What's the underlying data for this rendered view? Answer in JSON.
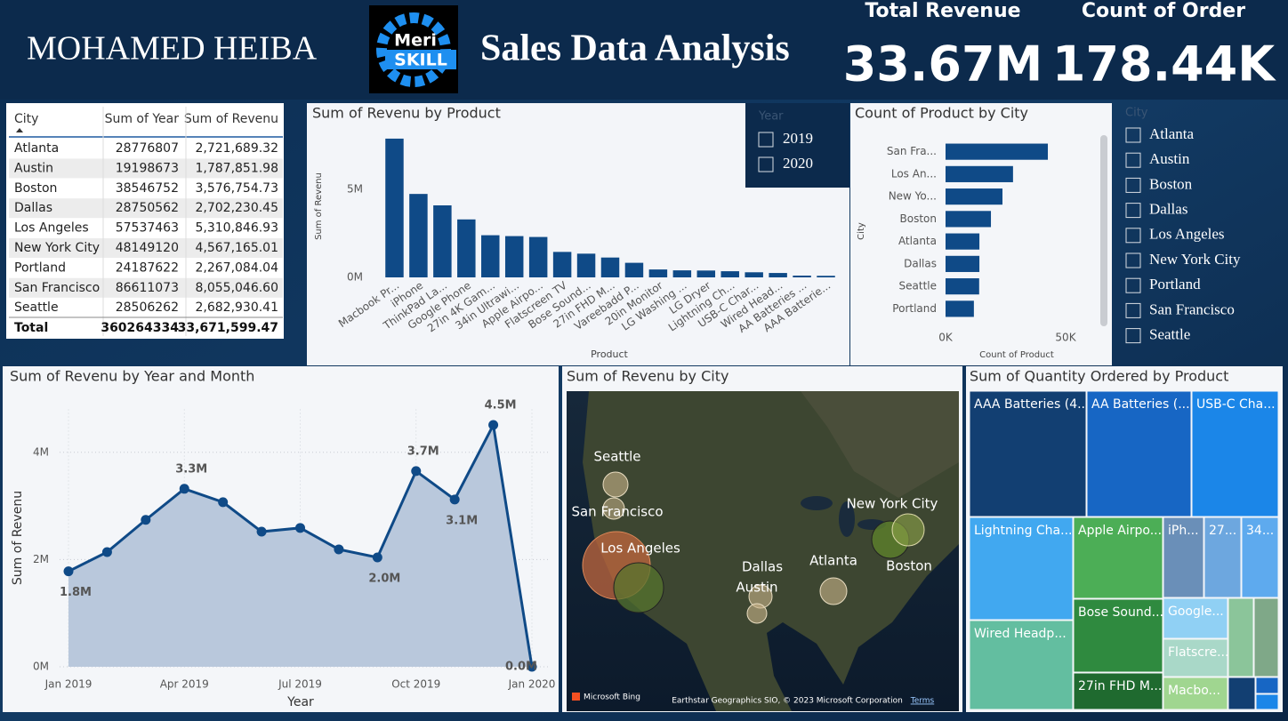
{
  "header": {
    "name": "MOHAMED HEIBA",
    "logo": [
      "Meri",
      "SKILL"
    ],
    "title": "Sales Data Analysis"
  },
  "kpis": [
    {
      "label": "Total Revenue",
      "value": "33.67M"
    },
    {
      "label": "Count of Order",
      "value": "178.44K"
    }
  ],
  "table": {
    "columns": [
      "City",
      "Sum of Year",
      "Sum of Revenu"
    ],
    "rows": [
      [
        "Atlanta",
        "28776807",
        "2,721,689.32"
      ],
      [
        "Austin",
        "19198673",
        "1,787,851.98"
      ],
      [
        "Boston",
        "38546752",
        "3,576,754.73"
      ],
      [
        "Dallas",
        "28750562",
        "2,702,230.45"
      ],
      [
        "Los Angeles",
        "57537463",
        "5,310,846.93"
      ],
      [
        "New York City",
        "48149120",
        "4,567,165.01"
      ],
      [
        "Portland",
        "24187622",
        "2,267,084.04"
      ],
      [
        "San Francisco",
        "86611073",
        "8,055,046.60"
      ],
      [
        "Seattle",
        "28506262",
        "2,682,930.41"
      ]
    ],
    "total": [
      "Total",
      "360264334",
      "33,671,599.47"
    ]
  },
  "slicers": [
    {
      "title": "Year",
      "items": [
        "2019",
        "2020"
      ]
    },
    {
      "title": "City",
      "items": [
        "Atlanta",
        "Austin",
        "Boston",
        "Dallas",
        "Los Angeles",
        "New York City",
        "Portland",
        "San Francisco",
        "Seattle"
      ]
    }
  ],
  "chart_data": [
    {
      "type": "bar",
      "title": "Sum of Revenu by Product",
      "x_label": "Product",
      "y_label": "Sum of Revenu",
      "categories": [
        "Macbook Pr...",
        "iPhone",
        "ThinkPad La...",
        "Google Phone",
        "27in 4K Gam...",
        "34in Ultrawi...",
        "Apple Airpo...",
        "Flatscreen TV",
        "Bose Sound...",
        "27in FHD M...",
        "Vareebadd P...",
        "20in Monitor",
        "LG Washing ...",
        "LG Dryer",
        "Lightning Ch...",
        "USB-C Char...",
        "Wired Head...",
        "AA Batteries ...",
        "AAA Batterie..."
      ],
      "values": [
        7.9,
        4.75,
        4.1,
        3.3,
        2.4,
        2.35,
        2.3,
        1.45,
        1.35,
        1.13,
        0.83,
        0.45,
        0.4,
        0.39,
        0.35,
        0.29,
        0.25,
        0.1,
        0.09
      ],
      "color": "#0f4a87",
      "ylim": [
        0,
        8.2
      ],
      "yticks": [
        {
          "value": 0,
          "label": "0M"
        },
        {
          "value": 5,
          "label": "5M"
        }
      ]
    },
    {
      "type": "hbar",
      "title": "Count of Product by City",
      "x_label": "Count of Product",
      "y_label": "City",
      "categories": [
        "San Fra...",
        "Los An...",
        "New Yo...",
        "Boston",
        "Atlanta",
        "Dallas",
        "Seattle",
        "Portland"
      ],
      "values": [
        42.6,
        28.1,
        23.7,
        18.9,
        14.1,
        14.1,
        14.0,
        11.8
      ],
      "color": "#0f4a87",
      "xlim": [
        0,
        52
      ],
      "xticks": [
        {
          "value": 0,
          "label": "0K"
        },
        {
          "value": 50,
          "label": "50K"
        }
      ]
    },
    {
      "type": "line",
      "title": "Sum of Revenu by Year and Month",
      "x_label": "Year",
      "y_label": "Sum of Revenu",
      "categories": [
        "Jan 2019",
        null,
        null,
        "Apr 2019",
        null,
        null,
        "Jul 2019",
        null,
        null,
        "Oct 2019",
        null,
        null,
        "Jan 2020"
      ],
      "values": [
        1.78,
        2.14,
        2.74,
        3.32,
        3.07,
        2.52,
        2.59,
        2.19,
        2.04,
        3.65,
        3.12,
        4.51,
        0.0
      ],
      "value_labels": [
        "1.8M",
        null,
        null,
        "3.3M",
        null,
        null,
        null,
        null,
        "2.0M",
        "3.7M",
        "3.1M",
        "4.5M",
        "0.0M"
      ],
      "color": "#0f4a87",
      "fill": "#b9c8dc",
      "ylim": [
        0,
        4.8
      ],
      "grid": true,
      "yticks": [
        {
          "value": 0,
          "label": "0M"
        },
        {
          "value": 2,
          "label": "2M"
        },
        {
          "value": 4,
          "label": "4M"
        }
      ]
    },
    {
      "type": "treemap",
      "title": "Sum of Quantity Ordered by Product",
      "categories": [
        "AAA Batteries (4...",
        "AA Batteries (...",
        "USB-C Cha...",
        "Lightning Cha...",
        "Wired Headp...",
        "Apple Airpo...",
        "Bose Sound...",
        "27in FHD M...",
        "iPh...",
        "27...",
        "34...",
        "Google...",
        "Flatscre...",
        "Macbo...",
        null,
        null,
        null,
        null,
        null
      ],
      "values": [
        31017,
        27635,
        23975,
        23217,
        20557,
        15661,
        13457,
        7550,
        6849,
        6244,
        6199,
        5532,
        4819,
        4728,
        4130,
        4129,
        2068,
        666,
        646
      ],
      "colors": [
        "#123f72",
        "#1766c4",
        "#1b86e8",
        "#41a8f0",
        "#63bea0",
        "#4cae56",
        "#2f8a3f",
        "#1f6a2f",
        "#6a8fb8",
        "#6da7df",
        "#5eaaee",
        "#90d0f4",
        "#a9d8c8",
        "#a0d690",
        "#8bc59a",
        "#7fa888",
        "#123f72",
        "#1766c4",
        "#1b86e8"
      ]
    }
  ],
  "map": {
    "title": "Sum of Revenu by City",
    "labels": [
      "Seattle",
      "San Francisco",
      "Los Angeles",
      "Dallas",
      "Austin",
      "Atlanta",
      "New York City",
      "Boston"
    ],
    "attribution": [
      "Microsoft Bing",
      "Earthstar Geographics SIO, © 2023 Microsoft Corporation",
      "Terms"
    ]
  }
}
